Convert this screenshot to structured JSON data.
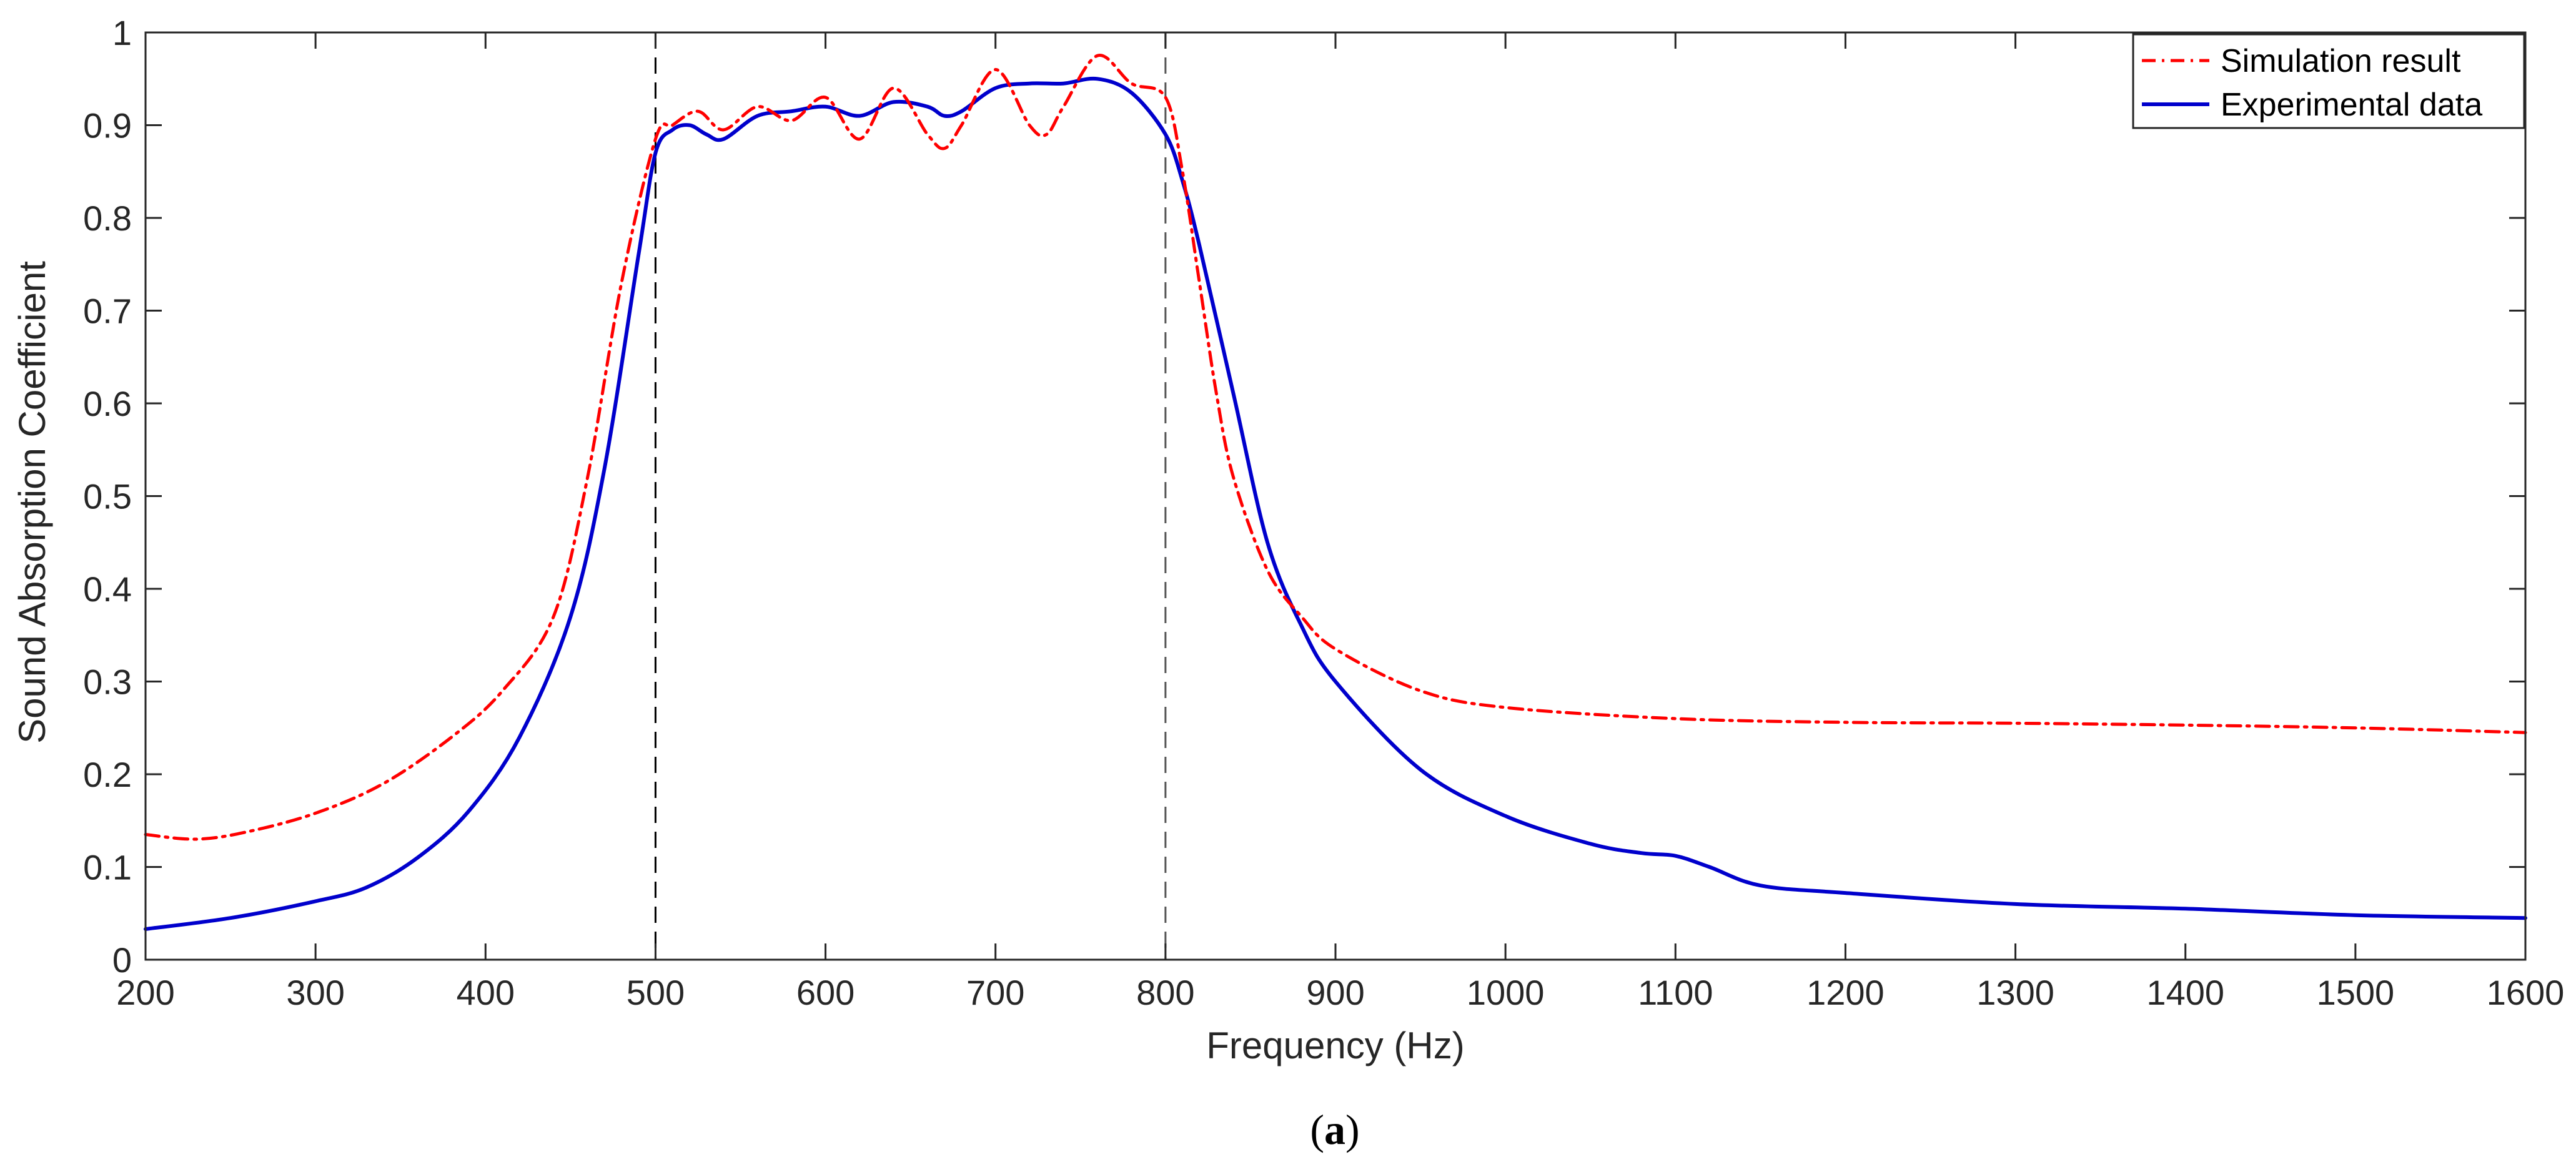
{
  "chart_data": {
    "type": "line",
    "title": "",
    "xlabel": "Frequency (Hz)",
    "ylabel": "Sound Absorption Coefficient",
    "xlim": [
      200,
      1600
    ],
    "ylim": [
      0,
      1
    ],
    "xticks": [
      200,
      300,
      400,
      500,
      600,
      700,
      800,
      900,
      1000,
      1100,
      1200,
      1300,
      1400,
      1500,
      1600
    ],
    "xtick_labels": [
      "200",
      "300",
      "400",
      "500",
      "600",
      "700",
      "800",
      "900",
      "1000",
      "1100",
      "1200",
      "1300",
      "1400",
      "1500",
      "1600"
    ],
    "yticks": [
      0,
      0.1,
      0.2,
      0.3,
      0.4,
      0.5,
      0.6,
      0.7,
      0.8,
      0.9,
      1
    ],
    "ytick_labels": [
      "0",
      "0.1",
      "0.2",
      "0.3",
      "0.4",
      "0.5",
      "0.6",
      "0.7",
      "0.8",
      "0.9",
      "1"
    ],
    "grid": false,
    "legend_position": "top-right",
    "vertical_reference_lines": [
      500,
      800
    ],
    "caption_letter": "a",
    "series": [
      {
        "name": "Simulation result",
        "color": "#ff0000",
        "style": "dash-dot",
        "x": [
          200,
          230,
          260,
          300,
          340,
          380,
          410,
          440,
          460,
          480,
          500,
          510,
          525,
          540,
          560,
          580,
          600,
          620,
          640,
          660,
          670,
          680,
          700,
          720,
          730,
          740,
          760,
          780,
          800,
          810,
          820,
          830,
          840,
          860,
          880,
          900,
          950,
          1000,
          1100,
          1200,
          1300,
          1400,
          1500,
          1600
        ],
        "y": [
          0.135,
          0.13,
          0.138,
          0.158,
          0.19,
          0.24,
          0.29,
          0.37,
          0.52,
          0.73,
          0.885,
          0.9,
          0.915,
          0.895,
          0.92,
          0.905,
          0.93,
          0.885,
          0.94,
          0.89,
          0.875,
          0.9,
          0.96,
          0.9,
          0.89,
          0.92,
          0.975,
          0.945,
          0.93,
          0.85,
          0.73,
          0.61,
          0.52,
          0.42,
          0.37,
          0.335,
          0.29,
          0.272,
          0.26,
          0.256,
          0.255,
          0.253,
          0.25,
          0.245
        ]
      },
      {
        "name": "Experimental data",
        "color": "#0000cc",
        "style": "solid",
        "x": [
          200,
          250,
          300,
          330,
          360,
          390,
          420,
          450,
          470,
          490,
          500,
          510,
          520,
          530,
          540,
          560,
          580,
          600,
          620,
          640,
          660,
          670,
          680,
          700,
          720,
          740,
          760,
          780,
          800,
          810,
          820,
          840,
          860,
          880,
          900,
          950,
          1000,
          1050,
          1080,
          1100,
          1120,
          1150,
          1200,
          1300,
          1400,
          1500,
          1600
        ],
        "y": [
          0.033,
          0.045,
          0.063,
          0.078,
          0.11,
          0.16,
          0.24,
          0.37,
          0.53,
          0.76,
          0.87,
          0.895,
          0.9,
          0.89,
          0.885,
          0.91,
          0.915,
          0.92,
          0.91,
          0.925,
          0.92,
          0.91,
          0.915,
          0.94,
          0.945,
          0.945,
          0.95,
          0.935,
          0.89,
          0.84,
          0.77,
          0.61,
          0.45,
          0.36,
          0.3,
          0.205,
          0.155,
          0.125,
          0.115,
          0.112,
          0.1,
          0.08,
          0.072,
          0.06,
          0.055,
          0.048,
          0.045
        ]
      }
    ]
  }
}
